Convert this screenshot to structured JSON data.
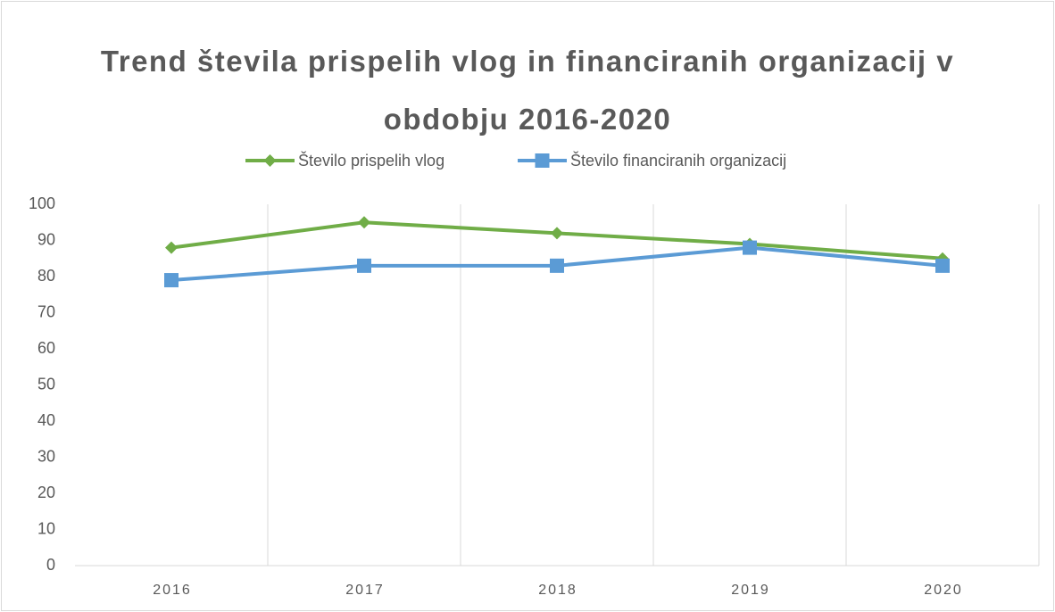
{
  "chart_data": {
    "type": "line",
    "title": "Trend števila prispelih vlog in financiranih organizacij v obdobju 2016-2020",
    "categories": [
      "2016",
      "2017",
      "2018",
      "2019",
      "2020"
    ],
    "series": [
      {
        "name": "Število prispelih vlog",
        "color": "#70ad47",
        "marker": "diamond",
        "values": [
          88,
          95,
          92,
          89,
          85
        ]
      },
      {
        "name": "Število financiranih organizacij",
        "color": "#5b9bd5",
        "marker": "square",
        "values": [
          79,
          83,
          83,
          88,
          83
        ]
      }
    ],
    "ylim": [
      0,
      100
    ],
    "yticks": [
      0,
      10,
      20,
      30,
      40,
      50,
      60,
      70,
      80,
      90,
      100
    ],
    "legend": "top"
  }
}
